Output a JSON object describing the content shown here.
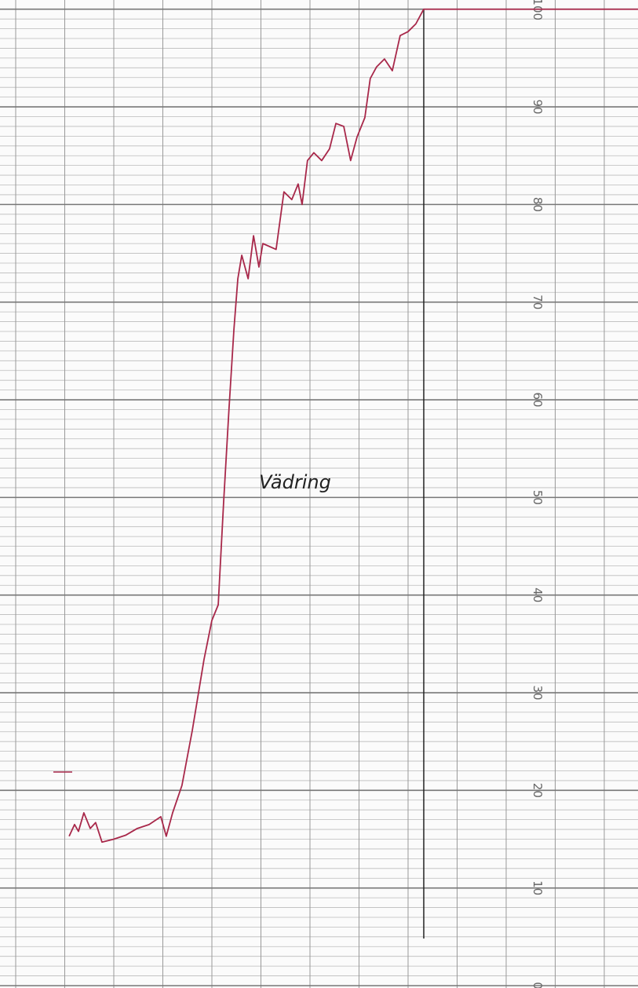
{
  "chart_data": {
    "type": "line",
    "annotation": "Vädring",
    "x": [
      1.09,
      1.2,
      1.28,
      1.39,
      1.52,
      1.63,
      1.76,
      2,
      2.24,
      2.48,
      2.72,
      2.96,
      3.07,
      3.2,
      3.39,
      3.6,
      3.84,
      4,
      4.13,
      4.24,
      4.35,
      4.45,
      4.53,
      4.61,
      4.74,
      4.85,
      4.96,
      5.04,
      5.31,
      5.47,
      5.63,
      5.76,
      5.84,
      5.95,
      6.08,
      6.24,
      6.4,
      6.53,
      6.69,
      6.83,
      6.96,
      7.12,
      7.23,
      7.36,
      7.52,
      7.68,
      7.84,
      8,
      8.16,
      8.32,
      12.69
    ],
    "series": [
      {
        "color": "#a8284a",
        "values": [
          15.3,
          16.5,
          15.8,
          17.7,
          16.1,
          16.7,
          14.7,
          15,
          15.4,
          16.1,
          16.5,
          17.3,
          15.3,
          17.7,
          20.5,
          26.1,
          33.4,
          37.4,
          39,
          49.5,
          59.1,
          67.2,
          72.4,
          74.8,
          72.4,
          76.8,
          73.6,
          76,
          75.4,
          81.3,
          80.5,
          82.1,
          80,
          84.5,
          85.3,
          84.5,
          85.7,
          88.3,
          88,
          84.5,
          86.9,
          88.9,
          92.9,
          94.1,
          94.9,
          93.7,
          97.3,
          97.7,
          98.5,
          100,
          100
        ]
      }
    ],
    "xlim": [
      -0.32,
      12.69
    ],
    "ylim": [
      0,
      100.3
    ],
    "yticks": [
      0,
      10,
      20,
      30,
      40,
      50,
      60,
      70,
      80,
      90,
      100
    ],
    "grid": true
  }
}
